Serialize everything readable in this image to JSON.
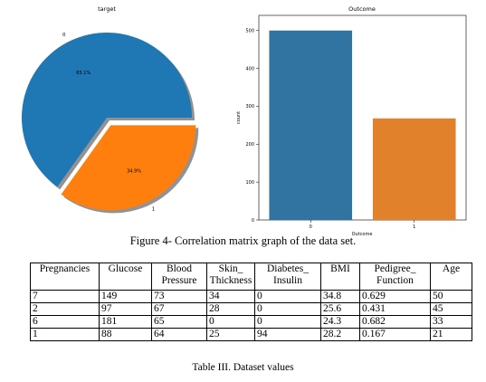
{
  "chart_data": [
    {
      "type": "pie",
      "title": "target",
      "labels": [
        "0",
        "1"
      ],
      "values": [
        65.1,
        34.9
      ],
      "value_labels": [
        "65.1%",
        "34.9%"
      ],
      "explode": [
        0,
        0.1
      ],
      "shadow": true,
      "colors": [
        "#1f77b4",
        "#ff7f0e"
      ]
    },
    {
      "type": "bar",
      "title": "Outcome",
      "categories": [
        "0",
        "1"
      ],
      "values": [
        500,
        268
      ],
      "xlabel": "Outcome",
      "ylabel": "count",
      "ylim": [
        0,
        540
      ],
      "yticks": [
        0,
        100,
        200,
        300,
        400,
        500
      ],
      "colors": [
        "#3274a1",
        "#e1812c"
      ]
    }
  ],
  "figure_caption": "Figure 4- Correlation matrix graph of the data set.",
  "table": {
    "headers": [
      [
        "Pregnancies"
      ],
      [
        "Glucose"
      ],
      [
        "Blood",
        "Pressure"
      ],
      [
        "Skin_",
        "Thickness"
      ],
      [
        "Diabetes_",
        "Insulin"
      ],
      [
        "BMI"
      ],
      [
        "Pedigree_",
        "Function"
      ],
      [
        "Age"
      ]
    ],
    "rows": [
      [
        "7",
        "149",
        "73",
        "34",
        "0",
        "34.8",
        "0.629",
        "50"
      ],
      [
        "2",
        "97",
        "67",
        "28",
        "0",
        "25.6",
        "0.431",
        "45"
      ],
      [
        "6",
        "181",
        "65",
        "0",
        "0",
        "24.3",
        "0.682",
        "33"
      ],
      [
        "1",
        "88",
        "64",
        "25",
        "94",
        "28.2",
        "0.167",
        "21"
      ]
    ],
    "caption": "Table III. Dataset values"
  }
}
